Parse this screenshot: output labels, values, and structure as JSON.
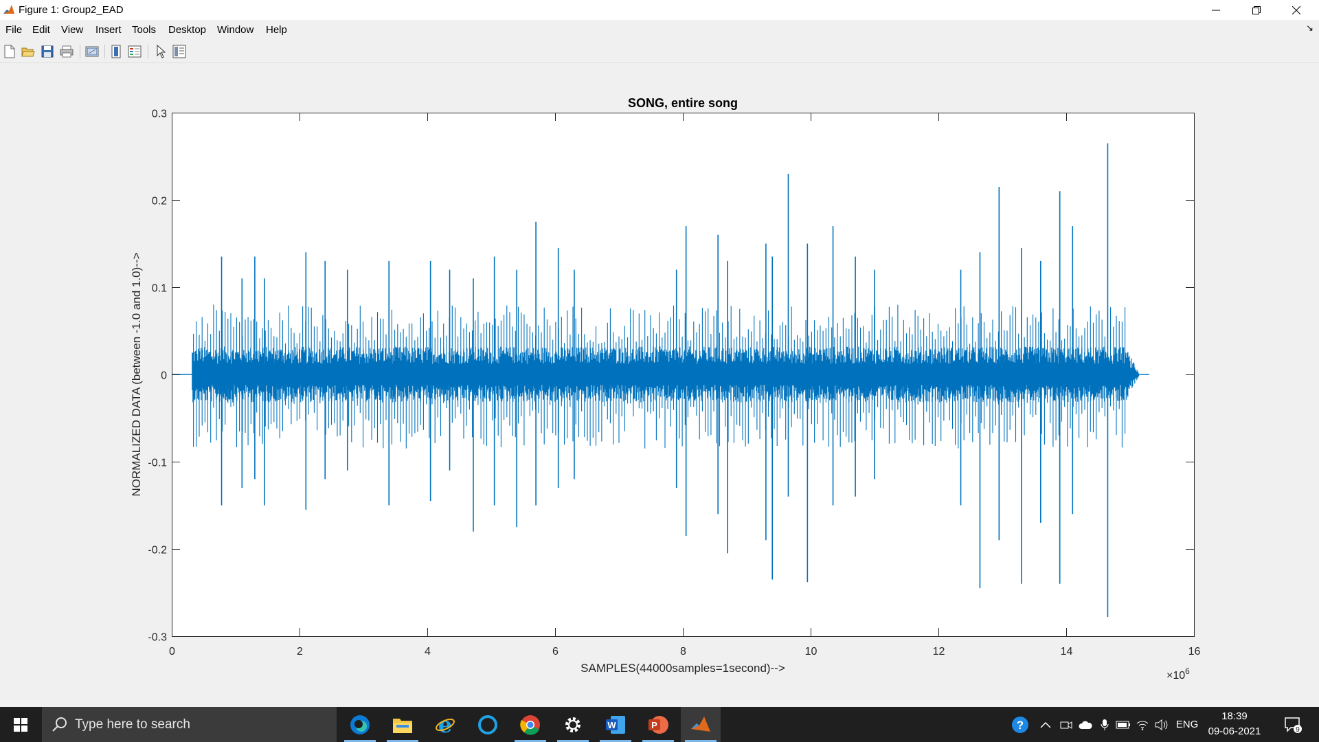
{
  "window": {
    "title": "Figure 1: Group2_EAD",
    "minimize_icon": "minimize-icon",
    "maximize_icon": "restore-icon",
    "close_icon": "close-icon"
  },
  "menu": [
    "File",
    "Edit",
    "View",
    "Insert",
    "Tools",
    "Desktop",
    "Window",
    "Help"
  ],
  "toolbar": [
    "new-figure-icon",
    "open-file-icon",
    "save-icon",
    "print-icon",
    "link-plot-icon",
    "colorbar-icon",
    "legend-icon",
    "edit-plot-arrow-icon",
    "property-inspector-icon"
  ],
  "chart_data": {
    "type": "line",
    "title": "SONG, entire song",
    "xlabel": "SAMPLES(44000samples=1second)-->",
    "ylabel": "NORMALIZED DATA (between -1.0 and 1.0)-->",
    "xlim": [
      0,
      16
    ],
    "ylim": [
      -0.3,
      0.3
    ],
    "x_exponent_base": "×10",
    "x_exponent_power": "6",
    "xticks": [
      "0",
      "2",
      "4",
      "6",
      "8",
      "10",
      "12",
      "14",
      "16"
    ],
    "yticks": [
      "0.3",
      "0.2",
      "0.1",
      "0",
      "-0.1",
      "-0.2",
      "-0.3"
    ],
    "series_color": "#0072bd",
    "signal_start": 0.32,
    "signal_end": 15.15,
    "peaks": [
      {
        "x": 0.78,
        "top": 0.135,
        "bottom": -0.15
      },
      {
        "x": 1.1,
        "top": 0.11,
        "bottom": -0.13
      },
      {
        "x": 1.3,
        "top": 0.135,
        "bottom": -0.12
      },
      {
        "x": 1.45,
        "top": 0.11,
        "bottom": -0.15
      },
      {
        "x": 2.1,
        "top": 0.14,
        "bottom": -0.155
      },
      {
        "x": 2.4,
        "top": 0.13,
        "bottom": -0.12
      },
      {
        "x": 2.75,
        "top": 0.12,
        "bottom": -0.11
      },
      {
        "x": 3.4,
        "top": 0.13,
        "bottom": -0.15
      },
      {
        "x": 4.05,
        "top": 0.13,
        "bottom": -0.145
      },
      {
        "x": 4.35,
        "top": 0.12,
        "bottom": -0.11
      },
      {
        "x": 4.72,
        "top": 0.11,
        "bottom": -0.18
      },
      {
        "x": 5.05,
        "top": 0.135,
        "bottom": -0.15
      },
      {
        "x": 5.4,
        "top": 0.12,
        "bottom": -0.175
      },
      {
        "x": 5.7,
        "top": 0.175,
        "bottom": -0.15
      },
      {
        "x": 6.05,
        "top": 0.145,
        "bottom": -0.13
      },
      {
        "x": 6.3,
        "top": 0.12,
        "bottom": -0.12
      },
      {
        "x": 7.9,
        "top": 0.12,
        "bottom": -0.13
      },
      {
        "x": 8.05,
        "top": 0.17,
        "bottom": -0.185
      },
      {
        "x": 8.55,
        "top": 0.16,
        "bottom": -0.16
      },
      {
        "x": 8.7,
        "top": 0.13,
        "bottom": -0.205
      },
      {
        "x": 9.3,
        "top": 0.15,
        "bottom": -0.19
      },
      {
        "x": 9.4,
        "top": 0.135,
        "bottom": -0.235
      },
      {
        "x": 9.65,
        "top": 0.23,
        "bottom": -0.14
      },
      {
        "x": 9.95,
        "top": 0.15,
        "bottom": -0.238
      },
      {
        "x": 10.35,
        "top": 0.17,
        "bottom": -0.15
      },
      {
        "x": 10.7,
        "top": 0.135,
        "bottom": -0.14
      },
      {
        "x": 11.0,
        "top": 0.12,
        "bottom": -0.12
      },
      {
        "x": 12.35,
        "top": 0.12,
        "bottom": -0.15
      },
      {
        "x": 12.65,
        "top": 0.14,
        "bottom": -0.245
      },
      {
        "x": 12.95,
        "top": 0.215,
        "bottom": -0.19
      },
      {
        "x": 13.3,
        "top": 0.145,
        "bottom": -0.24
      },
      {
        "x": 13.6,
        "top": 0.13,
        "bottom": -0.17
      },
      {
        "x": 13.9,
        "top": 0.21,
        "bottom": -0.24
      },
      {
        "x": 14.1,
        "top": 0.17,
        "bottom": -0.16
      },
      {
        "x": 14.65,
        "top": 0.265,
        "bottom": -0.278
      }
    ]
  },
  "taskbar": {
    "search_placeholder": "Type here to search",
    "apps": [
      "edge-icon",
      "file-explorer-icon",
      "internet-explorer-icon",
      "cortana-icon",
      "chrome-icon",
      "settings-icon",
      "word-icon",
      "powerpoint-icon",
      "matlab-icon"
    ],
    "tray_language": "ENG",
    "time": "18:39",
    "date": "09-06-2021",
    "notification_count": "9"
  }
}
